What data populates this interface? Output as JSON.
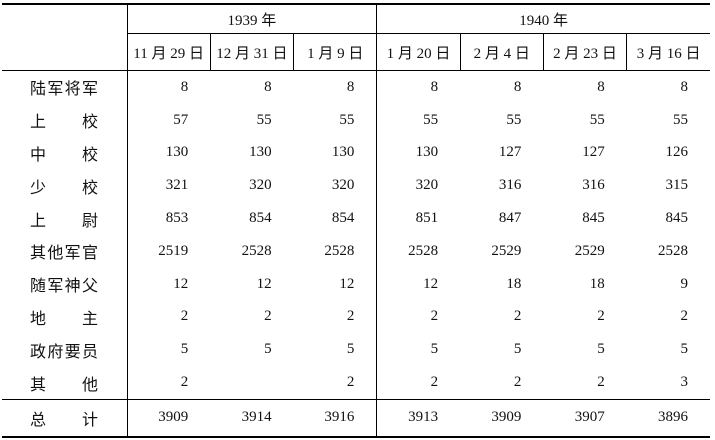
{
  "table": {
    "groups": [
      {
        "year": "1939 年",
        "dates": [
          "11 月 29 日",
          "12 月 31 日",
          "1 月 9 日"
        ]
      },
      {
        "year": "1940 年",
        "dates": [
          "1 月 20 日",
          "2 月 4 日",
          "2 月 23 日",
          "3 月 16 日"
        ]
      }
    ],
    "rows": [
      {
        "label": "陆军将军",
        "values": [
          8,
          8,
          8,
          8,
          8,
          8,
          8
        ]
      },
      {
        "label": "上校",
        "values": [
          57,
          55,
          55,
          55,
          55,
          55,
          55
        ]
      },
      {
        "label": "中校",
        "values": [
          130,
          130,
          130,
          130,
          127,
          127,
          126
        ]
      },
      {
        "label": "少校",
        "values": [
          321,
          320,
          320,
          320,
          316,
          316,
          315
        ]
      },
      {
        "label": "上尉",
        "values": [
          853,
          854,
          854,
          851,
          847,
          845,
          845
        ]
      },
      {
        "label": "其他军官",
        "values": [
          2519,
          2528,
          2528,
          2528,
          2529,
          2529,
          2528
        ]
      },
      {
        "label": "随军神父",
        "values": [
          12,
          12,
          12,
          12,
          18,
          18,
          9
        ]
      },
      {
        "label": "地主",
        "values": [
          2,
          2,
          2,
          2,
          2,
          2,
          2
        ]
      },
      {
        "label": "政府要员",
        "values": [
          5,
          5,
          5,
          5,
          5,
          5,
          5
        ]
      },
      {
        "label": "其他",
        "values": [
          2,
          null,
          2,
          2,
          2,
          2,
          3
        ]
      }
    ],
    "total": {
      "label": "总计",
      "values": [
        3909,
        3914,
        3916,
        3913,
        3909,
        3907,
        3896
      ]
    }
  }
}
